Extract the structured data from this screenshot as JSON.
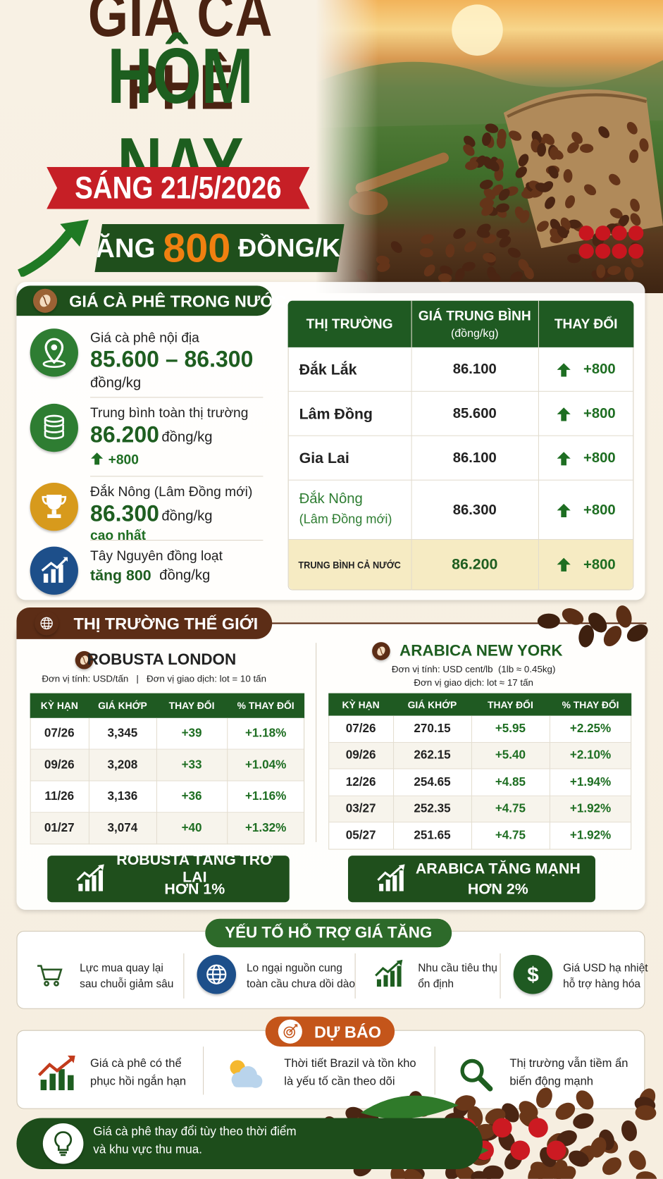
{
  "header": {
    "title_line1": "GIÁ CÀ PHÊ",
    "title_line2": "HÔM NAY",
    "date": "SÁNG 21/5/2026",
    "change_prefix": "TĂNG",
    "change_amount": "800",
    "change_unit": "ĐỒNG/KG"
  },
  "domestic": {
    "heading": "GIÁ CÀ PHÊ TRONG NƯỚC",
    "items": [
      {
        "label": "Giá cà phê nội địa",
        "value": "85.600 – 86.300",
        "unit": "đồng/kg"
      },
      {
        "label": "Trung bình toàn thị trường",
        "value": "86.200",
        "unit": "đồng/kg",
        "change": "+800"
      },
      {
        "label": "Đắk Nông (Lâm Đồng mới)",
        "value": "86.300",
        "unit": "đồng/kg",
        "note": "cao nhất"
      },
      {
        "label": "Tây Nguyên đồng loạt",
        "value": "tăng 800",
        "unit": "đồng/kg"
      }
    ],
    "table": {
      "headers": [
        "THỊ TRƯỜNG",
        "GIÁ TRUNG BÌNH",
        "THAY ĐỔI"
      ],
      "price_unit": "(đồng/kg)",
      "rows": [
        {
          "market": "Đắk Lắk",
          "price": "86.100",
          "change": "+800"
        },
        {
          "market": "Lâm Đồng",
          "price": "85.600",
          "change": "+800"
        },
        {
          "market": "Gia Lai",
          "price": "86.100",
          "change": "+800"
        },
        {
          "market": "Đắk Nông",
          "market_note": "(Lâm Đồng mới)",
          "price": "86.300",
          "change": "+800"
        }
      ],
      "total": {
        "market": "TRUNG BÌNH CẢ NƯỚC",
        "price": "86.200",
        "change": "+800"
      }
    }
  },
  "world": {
    "heading": "THỊ TRƯỜNG THẾ GIỚI",
    "markets": [
      {
        "title": "ROBUSTA LONDON",
        "units": [
          "Đơn vị tính: USD/tấn   |   Đơn vị giao dịch: lot = 10 tấn"
        ],
        "headers": [
          "KỲ HẠN",
          "GIÁ KHỚP",
          "THAY ĐỔI",
          "% THAY ĐỔI"
        ],
        "rows": [
          [
            "07/26",
            "3,345",
            "+39",
            "+1.18%"
          ],
          [
            "09/26",
            "3,208",
            "+33",
            "+1.04%"
          ],
          [
            "11/26",
            "3,136",
            "+36",
            "+1.16%"
          ],
          [
            "01/27",
            "3,074",
            "+40",
            "+1.32%"
          ]
        ],
        "badge": [
          "ROBUSTA TĂNG TRỞ LẠI",
          "HƠN 1%"
        ]
      },
      {
        "title": "ARABICA NEW YORK",
        "units": [
          "Đơn vị tính: USD cent/lb  (1lb ≈ 0.45kg)",
          "Đơn vị giao dịch: lot ≈ 17 tấn"
        ],
        "headers": [
          "KỲ HẠN",
          "GIÁ KHỚP",
          "THAY ĐỔI",
          "% THAY ĐỔI"
        ],
        "rows": [
          [
            "07/26",
            "270.15",
            "+5.95",
            "+2.25%"
          ],
          [
            "09/26",
            "262.15",
            "+5.40",
            "+2.10%"
          ],
          [
            "12/26",
            "254.65",
            "+4.85",
            "+1.94%"
          ],
          [
            "03/27",
            "252.35",
            "+4.75",
            "+1.92%"
          ],
          [
            "05/27",
            "251.65",
            "+4.75",
            "+1.92%"
          ]
        ],
        "badge": [
          "ARABICA TĂNG MẠNH",
          "HƠN 2%"
        ]
      }
    ]
  },
  "factors": {
    "heading": "YẾU TỐ HỖ TRỢ GIÁ TĂNG",
    "items": [
      [
        "Lực mua quay lại",
        "sau chuỗi giảm sâu"
      ],
      [
        "Lo ngại nguồn cung",
        "toàn cầu chưa dồi dào"
      ],
      [
        "Nhu cầu tiêu thụ",
        "ổn định"
      ],
      [
        "Giá USD hạ nhiệt",
        "hỗ trợ hàng hóa"
      ]
    ]
  },
  "forecast": {
    "heading": "DỰ BÁO",
    "items": [
      [
        "Giá cà phê có thể",
        "phục hồi ngắn hạn"
      ],
      [
        "Thời tiết Brazil và tồn kho",
        "là yếu tố cần theo dõi"
      ],
      [
        "Thị trường vẫn tiềm ẩn",
        "biến động mạnh"
      ]
    ]
  },
  "footer": {
    "note": [
      "Giá cà phê thay đổi tùy theo thời điểm",
      "và khu vực thu mua."
    ]
  }
}
